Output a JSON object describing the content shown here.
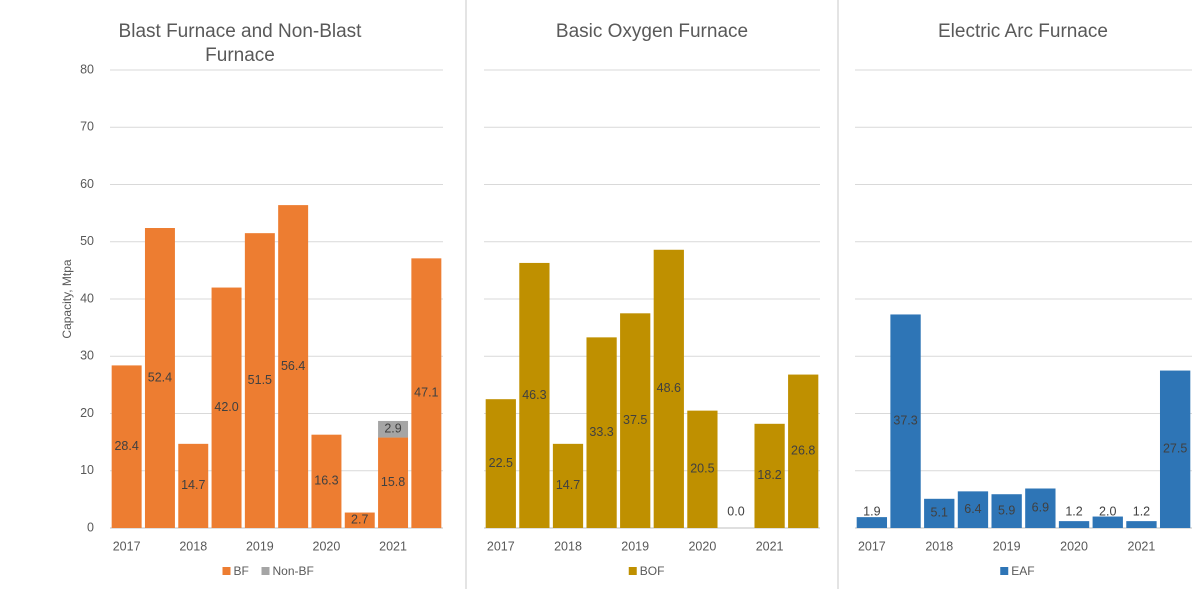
{
  "chart_data": [
    {
      "type": "bar",
      "stacked": true,
      "title": "Blast Furnace and Non-Blast Furnace",
      "ylabel": "Capacity, Mtpa",
      "categories": [
        "2017",
        null,
        "2018",
        null,
        "2019",
        null,
        "2020",
        null,
        "2021",
        null
      ],
      "series": [
        {
          "name": "BF",
          "color": "#ed7d31",
          "values": [
            28.4,
            52.4,
            14.7,
            42.0,
            51.5,
            56.4,
            16.3,
            2.7,
            15.8,
            47.1
          ],
          "value_labels": [
            "28.4",
            "52.4",
            "14.7",
            "42.0",
            "51.5",
            "56.4",
            "16.3",
            "2.7",
            "15.8",
            "47.1"
          ]
        },
        {
          "name": "Non-BF",
          "color": "#a5a5a5",
          "values": [
            null,
            null,
            null,
            null,
            null,
            null,
            null,
            null,
            2.9,
            null
          ],
          "value_labels": [
            null,
            null,
            null,
            null,
            null,
            null,
            null,
            null,
            "2.9",
            null
          ]
        }
      ],
      "ylim": [
        0,
        80
      ],
      "yticks": [
        0,
        10,
        20,
        30,
        40,
        50,
        60,
        70,
        80
      ],
      "ytick_labels": true,
      "grid": true,
      "legend": "bottom"
    },
    {
      "type": "bar",
      "title": "Basic Oxygen Furnace",
      "categories": [
        "2017",
        null,
        "2018",
        null,
        "2019",
        null,
        "2020",
        null,
        "2021",
        null
      ],
      "series": [
        {
          "name": "BOF",
          "color": "#bf9000",
          "values": [
            22.5,
            46.3,
            14.7,
            33.3,
            37.5,
            48.6,
            20.5,
            0.0,
            18.2,
            26.8
          ],
          "value_labels": [
            "22.5",
            "46.3",
            "14.7",
            "33.3",
            "37.5",
            "48.6",
            "20.5",
            "0.0",
            "18.2",
            "26.8"
          ]
        }
      ],
      "ylim": [
        0,
        80
      ],
      "yticks": [
        0,
        10,
        20,
        30,
        40,
        50,
        60,
        70,
        80
      ],
      "ytick_labels": false,
      "grid": true,
      "legend": "bottom"
    },
    {
      "type": "bar",
      "title": "Electric Arc Furnace",
      "categories": [
        "2017",
        null,
        "2018",
        null,
        "2019",
        null,
        "2020",
        null,
        "2021",
        null
      ],
      "series": [
        {
          "name": "EAF",
          "color": "#2e75b6",
          "values": [
            1.9,
            37.3,
            5.1,
            6.4,
            5.9,
            6.9,
            1.2,
            2.0,
            1.2,
            27.5
          ],
          "value_labels": [
            "1.9",
            "37.3",
            "5.1",
            "6.4",
            "5.9",
            "6.9",
            "1.2",
            "2.0",
            "1.2",
            "27.5"
          ]
        }
      ],
      "ylim": [
        0,
        80
      ],
      "yticks": [
        0,
        10,
        20,
        30,
        40,
        50,
        60,
        70,
        80
      ],
      "ytick_labels": false,
      "grid": true,
      "legend": "bottom"
    }
  ]
}
